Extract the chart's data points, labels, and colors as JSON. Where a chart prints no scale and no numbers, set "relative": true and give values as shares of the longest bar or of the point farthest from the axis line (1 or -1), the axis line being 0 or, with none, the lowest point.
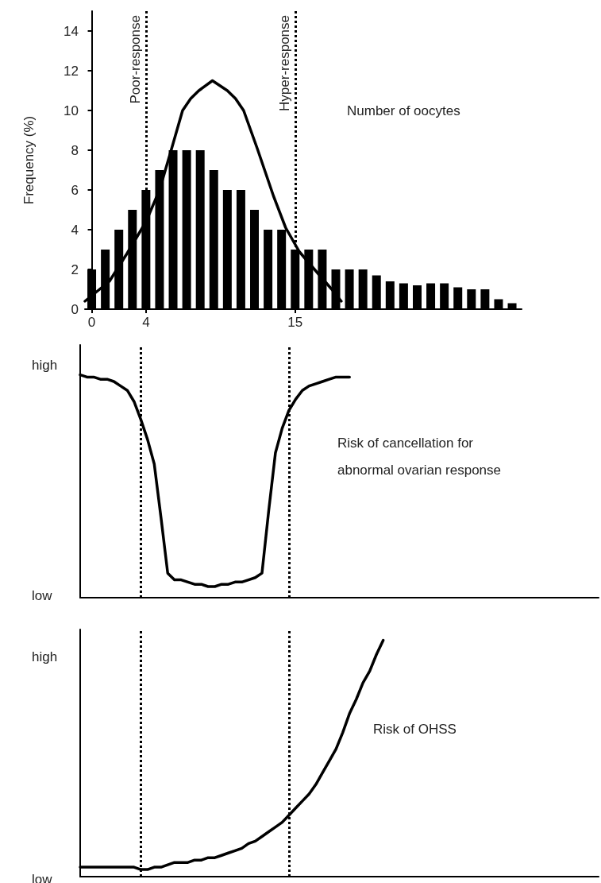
{
  "chart_data": [
    {
      "type": "bar",
      "ylabel": "Frequency (%)",
      "x": [
        0,
        1,
        2,
        3,
        4,
        5,
        6,
        7,
        8,
        9,
        10,
        11,
        12,
        13,
        14,
        15,
        16,
        17,
        18,
        19,
        20,
        21,
        22,
        23,
        24,
        25,
        26,
        27,
        28,
        29,
        30,
        31
      ],
      "series": [
        {
          "color": "#000000",
          "values": [
            2,
            3,
            4,
            5,
            6,
            7,
            8,
            8,
            8,
            7,
            6,
            6,
            5,
            4,
            4,
            3,
            3,
            3,
            2,
            2,
            2,
            1.7,
            1.4,
            1.3,
            1.2,
            1.3,
            1.3,
            1.1,
            1,
            1,
            0.5,
            0.3
          ]
        },
        {
          "type": "line",
          "color": "#000000",
          "x": [
            -0.5,
            1.3,
            2.6,
            4,
            5,
            5.9,
            6.7,
            7.3,
            7.9,
            8.9,
            10,
            10.6,
            11.2,
            12.2,
            13.4,
            14.3,
            15.3,
            16.3,
            17.7,
            18.4
          ],
          "values": [
            0.4,
            1.4,
            2.8,
            4.4,
            6,
            8.1,
            10,
            10.6,
            11,
            11.5,
            11,
            10.6,
            10,
            8.1,
            5.7,
            4.1,
            2.9,
            2.1,
            1,
            0.4
          ]
        }
      ],
      "xlim": [
        -0.5,
        31.7
      ],
      "xticks": [
        0,
        4,
        15
      ],
      "ylim": [
        0,
        15
      ],
      "yticks": [
        0,
        2,
        4,
        6,
        8,
        10,
        12,
        14
      ],
      "ref_lines": [
        {
          "axis": "x",
          "value": 4,
          "label": "Poor-response",
          "color": "#000000",
          "line_style": "dotted"
        },
        {
          "axis": "x",
          "value": 15,
          "label": "Hyper-response",
          "color": "#000000",
          "line_style": "dotted"
        }
      ],
      "annotations": [
        "Number of oocytes"
      ],
      "grid": false,
      "marker": "none",
      "line_style": "solid"
    },
    {
      "type": "line",
      "relative": true,
      "categories": [
        null,
        null,
        null,
        null,
        null,
        null,
        null,
        null,
        null,
        null,
        null,
        null,
        null,
        null,
        null,
        null,
        null,
        null,
        null,
        null,
        null,
        null,
        null,
        null,
        null,
        null,
        null,
        null,
        null,
        null,
        null,
        null,
        null,
        null,
        null,
        null,
        null,
        null,
        null,
        null,
        null,
        null,
        null,
        null,
        null,
        null,
        null,
        null,
        null,
        null,
        null,
        null,
        null,
        null,
        null,
        null,
        null,
        null,
        null,
        null,
        null,
        null,
        null,
        null,
        null,
        null,
        null,
        null,
        null,
        null,
        null,
        null,
        null,
        null,
        null,
        null,
        null,
        null
      ],
      "series": [
        {
          "color": "#000000",
          "values": [
            1,
            0.99,
            0.99,
            0.98,
            0.98,
            0.97,
            0.95,
            0.93,
            0.88,
            0.8,
            0.71,
            0.6,
            0.36,
            0.11,
            0.08,
            0.08,
            0.07,
            0.06,
            0.06,
            0.05,
            0.05,
            0.06,
            0.06,
            0.07,
            0.07,
            0.08,
            0.09,
            0.11,
            0.39,
            0.65,
            0.76,
            0.84,
            0.89,
            0.93,
            0.95,
            0.96,
            0.97,
            0.98,
            0.99,
            0.99,
            0.99,
            null,
            null,
            null,
            null,
            null,
            null,
            null,
            null,
            null,
            null,
            null,
            null,
            null,
            null,
            null,
            null,
            null,
            null,
            null,
            null,
            null,
            null,
            null,
            null,
            null,
            null,
            null,
            null,
            null,
            null,
            null,
            null,
            null,
            null,
            null,
            null,
            null
          ]
        }
      ],
      "annotations": [
        "high",
        "low",
        "Risk of cancellation for abnormal ovarian response"
      ],
      "grid": false,
      "marker": "none",
      "line_style": "solid"
    },
    {
      "type": "line",
      "relative": true,
      "categories": [
        null,
        null,
        null,
        null,
        null,
        null,
        null,
        null,
        null,
        null,
        null,
        null,
        null,
        null,
        null,
        null,
        null,
        null,
        null,
        null,
        null,
        null,
        null,
        null,
        null,
        null,
        null,
        null,
        null,
        null,
        null,
        null,
        null,
        null,
        null,
        null,
        null,
        null,
        null,
        null,
        null,
        null,
        null,
        null,
        null,
        null,
        null,
        null,
        null,
        null,
        null,
        null,
        null,
        null,
        null,
        null,
        null,
        null,
        null,
        null,
        null,
        null,
        null,
        null,
        null,
        null,
        null,
        null,
        null,
        null,
        null,
        null,
        null,
        null,
        null,
        null,
        null,
        null
      ],
      "series": [
        {
          "color": "#000000",
          "values": [
            0.04,
            0.04,
            0.04,
            0.04,
            0.04,
            0.04,
            0.04,
            0.04,
            0.04,
            0.03,
            0.03,
            0.04,
            0.04,
            0.05,
            0.06,
            0.06,
            0.06,
            0.07,
            0.07,
            0.08,
            0.08,
            0.09,
            0.1,
            0.11,
            0.12,
            0.14,
            0.15,
            0.17,
            0.19,
            0.21,
            0.23,
            0.26,
            0.29,
            0.32,
            0.35,
            0.39,
            0.44,
            0.49,
            0.54,
            0.61,
            0.69,
            0.75,
            0.82,
            0.87,
            0.94,
            1,
            null,
            null,
            null,
            null,
            null,
            null,
            null,
            null,
            null,
            null,
            null,
            null,
            null,
            null,
            null,
            null,
            null,
            null,
            null,
            null,
            null,
            null,
            null,
            null,
            null,
            null,
            null,
            null,
            null,
            null,
            null,
            null
          ]
        }
      ],
      "annotations": [
        "high",
        "low",
        "Risk of OHSS"
      ],
      "grid": false,
      "marker": "none",
      "line_style": "solid"
    }
  ]
}
